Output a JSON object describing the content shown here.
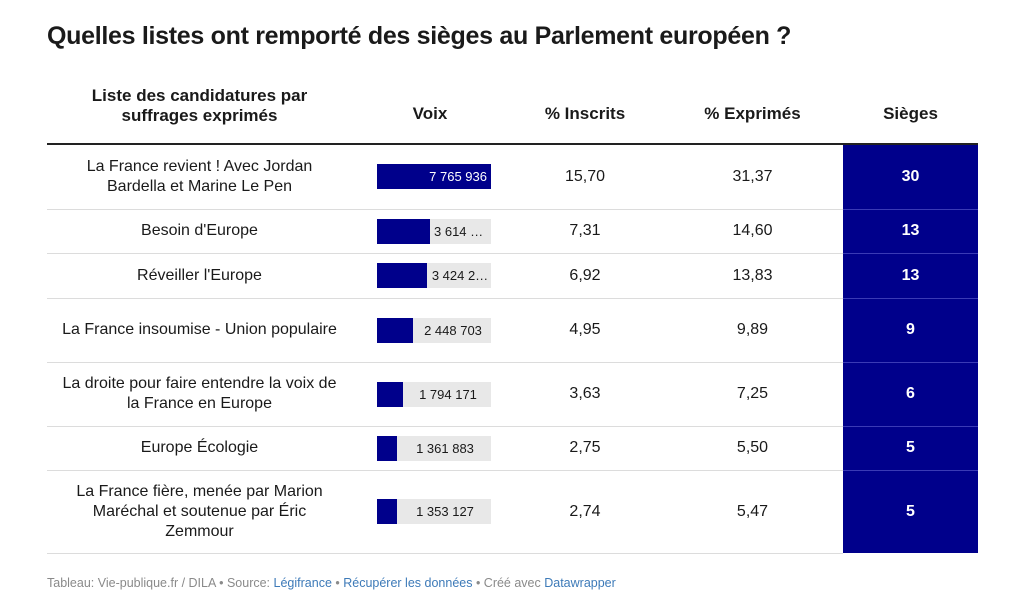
{
  "title": "Quelles listes ont remporté des sièges au Parlement européen ?",
  "columns": {
    "list": "Liste des candidatures par suffrages exprimés",
    "votes": "Voix",
    "pct_registered": "% Inscrits",
    "pct_cast": "% Exprimés",
    "seats": "Sièges"
  },
  "colors": {
    "bar": "#00008b",
    "bar_track": "#e8e8e8",
    "seats_bg": "#00008b",
    "link": "#3d7ab8"
  },
  "chart_data": {
    "type": "table",
    "bar_max": 7765936,
    "rows": [
      {
        "name": "La France revient ! Avec Jordan Bardella et Marine Le Pen",
        "votes": 7765936,
        "votes_label": "7 765 936",
        "pct_registered": "15,70",
        "pct_cast": "31,37",
        "seats": "30"
      },
      {
        "name": "Besoin d'Europe",
        "votes": 3614646,
        "votes_label": "3 614 6…",
        "pct_registered": "7,31",
        "pct_cast": "14,60",
        "seats": "13"
      },
      {
        "name": "Réveiller l'Europe",
        "votes": 3424216,
        "votes_label": "3 424 2…",
        "pct_registered": "6,92",
        "pct_cast": "13,83",
        "seats": "13"
      },
      {
        "name": "La France insoumise - Union populaire",
        "votes": 2448703,
        "votes_label": "2 448 703",
        "pct_registered": "4,95",
        "pct_cast": "9,89",
        "seats": "9"
      },
      {
        "name": "La droite pour faire entendre la voix de la France en Europe",
        "votes": 1794171,
        "votes_label": "1 794 171",
        "pct_registered": "3,63",
        "pct_cast": "7,25",
        "seats": "6"
      },
      {
        "name": "Europe Écologie",
        "votes": 1361883,
        "votes_label": "1 361 883",
        "pct_registered": "2,75",
        "pct_cast": "5,50",
        "seats": "5"
      },
      {
        "name": "La France fière, menée par Marion Maréchal et soutenue par Éric Zemmour",
        "votes": 1353127,
        "votes_label": "1 353 127",
        "pct_registered": "2,74",
        "pct_cast": "5,47",
        "seats": "5"
      }
    ]
  },
  "footer": {
    "source_prefix": "Tableau: Vie-publique.fr / DILA • Source: ",
    "source_link": "Légifrance",
    "sep1": " • ",
    "data_link": "Récupérer les données",
    "sep2": " • Créé avec ",
    "tool_link": "Datawrapper"
  }
}
